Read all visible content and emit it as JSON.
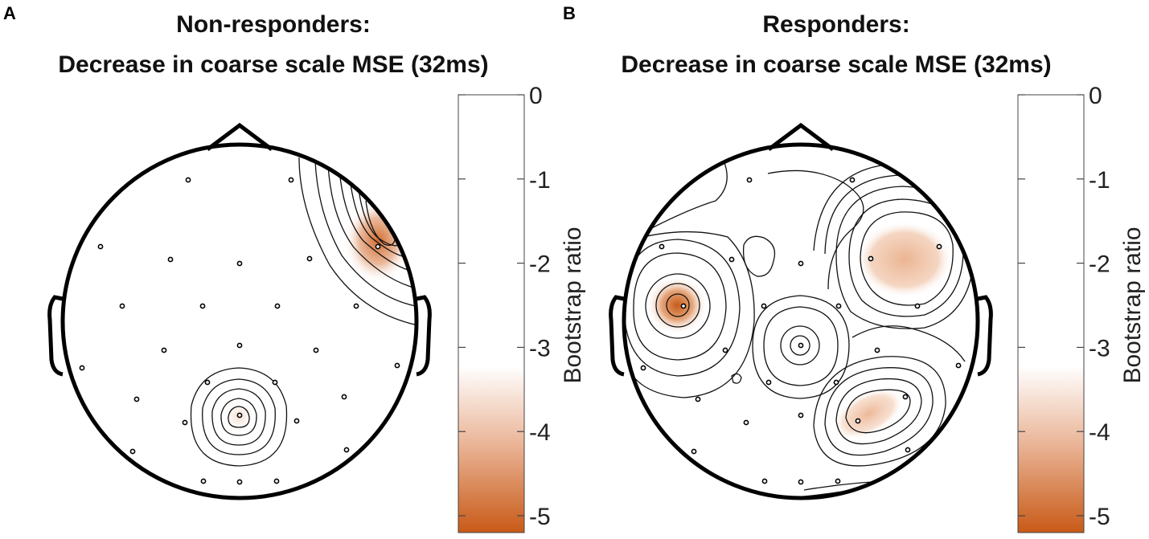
{
  "chart_data": [
    {
      "type": "heatmap",
      "panel_letter": "A",
      "title_line1": "Non-responders:",
      "title_line2": "Decrease in coarse scale MSE (32ms)",
      "colorbar": {
        "label": "Bootstrap ratio",
        "ticks": [
          0,
          -1,
          -2,
          -3,
          -4,
          -5
        ],
        "tick_labels": [
          "0",
          "-1",
          "-2",
          "-3",
          "-4",
          "-5"
        ],
        "range": [
          -5.2,
          0
        ],
        "color_top": "#ffffff",
        "color_bottom": "#c85a17"
      },
      "hotspots": [
        {
          "region": "right-frontal",
          "peak": -4.3
        },
        {
          "region": "occipital",
          "peak": -3.0
        }
      ]
    },
    {
      "type": "heatmap",
      "panel_letter": "B",
      "title_line1": "Responders:",
      "title_line2": "Decrease in coarse scale MSE (32ms)",
      "colorbar": {
        "label": "Bootstrap ratio",
        "ticks": [
          0,
          -1,
          -2,
          -3,
          -4,
          -5
        ],
        "tick_labels": [
          "0",
          "-1",
          "-2",
          "-3",
          "-4",
          "-5"
        ],
        "range": [
          -5.2,
          0
        ],
        "color_top": "#ffffff",
        "color_bottom": "#c85a17"
      },
      "hotspots": [
        {
          "region": "left-temporal",
          "peak": -4.8
        },
        {
          "region": "right-frontal",
          "peak": -3.8
        },
        {
          "region": "right-parietal",
          "peak": -3.6
        },
        {
          "region": "central",
          "peak": -3.0
        }
      ]
    }
  ]
}
